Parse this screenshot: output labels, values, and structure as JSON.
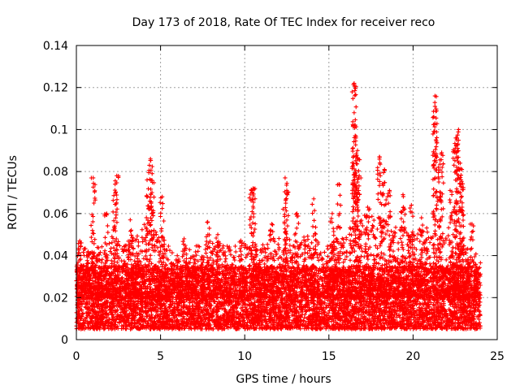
{
  "chart_data": {
    "type": "scatter",
    "title": "Day 173 of 2018, Rate Of TEC Index for receiver reco",
    "xlabel": "GPS time / hours",
    "ylabel": "ROTI / TECUs",
    "xlim": [
      0,
      25
    ],
    "ylim": [
      0,
      0.14
    ],
    "x_ticks": [
      0,
      5,
      10,
      15,
      20,
      25
    ],
    "x_tick_labels": [
      "0",
      "5",
      "10",
      "15",
      "20",
      "25"
    ],
    "y_ticks": [
      0,
      0.02,
      0.04,
      0.06,
      0.08,
      0.1,
      0.12,
      0.14
    ],
    "y_tick_labels": [
      "0",
      "0.02",
      "0.04",
      "0.06",
      "0.08",
      "0.1",
      "0.12",
      "0.14"
    ],
    "grid": true,
    "marker": "+",
    "series": [
      {
        "name": "ROTI",
        "color": "#ff0000",
        "x_range": [
          0,
          24
        ],
        "bulk_band": [
          0.005,
          0.035
        ],
        "envelope": [
          [
            0,
            0.045
          ],
          [
            1,
            0.042
          ],
          [
            2,
            0.05
          ],
          [
            3,
            0.045
          ],
          [
            4,
            0.055
          ],
          [
            5,
            0.05
          ],
          [
            6,
            0.04
          ],
          [
            7,
            0.045
          ],
          [
            8,
            0.048
          ],
          [
            9,
            0.045
          ],
          [
            10,
            0.048
          ],
          [
            11,
            0.045
          ],
          [
            12,
            0.05
          ],
          [
            13,
            0.048
          ],
          [
            14,
            0.05
          ],
          [
            15,
            0.045
          ],
          [
            16,
            0.052
          ],
          [
            17,
            0.06
          ],
          [
            18,
            0.058
          ],
          [
            19,
            0.055
          ],
          [
            20,
            0.05
          ],
          [
            21,
            0.055
          ],
          [
            22,
            0.05
          ],
          [
            23,
            0.045
          ],
          [
            24,
            0.04
          ]
        ],
        "peaks": [
          [
            0.2,
            0.047
          ],
          [
            1.0,
            0.077
          ],
          [
            1.8,
            0.06
          ],
          [
            2.3,
            0.074
          ],
          [
            2.4,
            0.078
          ],
          [
            3.2,
            0.057
          ],
          [
            4.2,
            0.076
          ],
          [
            4.4,
            0.086
          ],
          [
            4.5,
            0.079
          ],
          [
            5.1,
            0.068
          ],
          [
            6.4,
            0.048
          ],
          [
            7.8,
            0.056
          ],
          [
            8.4,
            0.05
          ],
          [
            10.4,
            0.071
          ],
          [
            10.5,
            0.072
          ],
          [
            11.6,
            0.055
          ],
          [
            12.4,
            0.077
          ],
          [
            12.5,
            0.071
          ],
          [
            13.1,
            0.06
          ],
          [
            14.1,
            0.067
          ],
          [
            15.2,
            0.06
          ],
          [
            15.6,
            0.074
          ],
          [
            16.5,
            0.122
          ],
          [
            16.5,
            0.108
          ],
          [
            16.6,
            0.096
          ],
          [
            16.7,
            0.09
          ],
          [
            16.8,
            0.078
          ],
          [
            17.3,
            0.063
          ],
          [
            18.0,
            0.087
          ],
          [
            18.3,
            0.081
          ],
          [
            18.6,
            0.071
          ],
          [
            19.4,
            0.069
          ],
          [
            19.9,
            0.064
          ],
          [
            20.5,
            0.058
          ],
          [
            21.3,
            0.116
          ],
          [
            21.3,
            0.111
          ],
          [
            21.5,
            0.082
          ],
          [
            21.7,
            0.089
          ],
          [
            22.2,
            0.071
          ],
          [
            22.5,
            0.091
          ],
          [
            22.6,
            0.096
          ],
          [
            22.7,
            0.1
          ],
          [
            22.8,
            0.084
          ],
          [
            22.9,
            0.081
          ],
          [
            23.5,
            0.055
          ]
        ]
      }
    ]
  }
}
